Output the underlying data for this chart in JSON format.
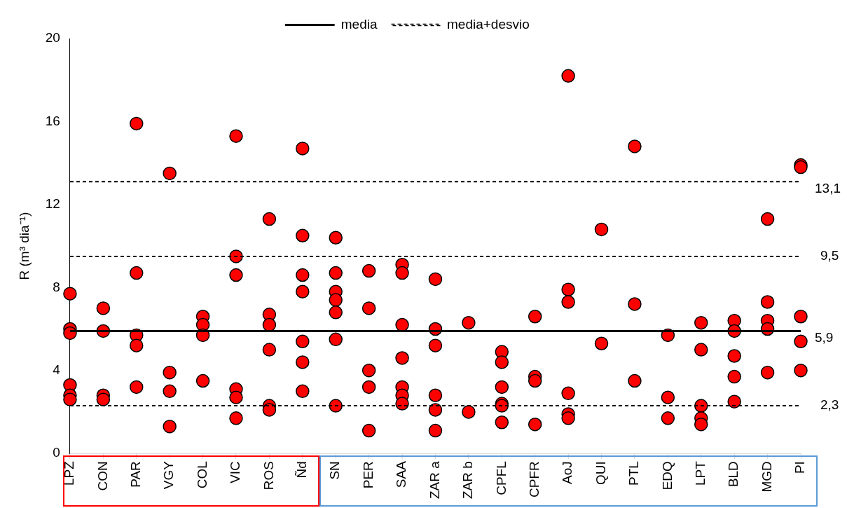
{
  "chart_data": {
    "type": "scatter",
    "ylabel": "R (m³ dia⁻¹)",
    "categories": [
      "LPZ",
      "CON",
      "PAR",
      "VGY",
      "COL",
      "VIC",
      "ROS",
      "Ñd",
      "SN",
      "PER",
      "SAA",
      "ZAR a",
      "ZAR b",
      "CPFL",
      "CPFR",
      "AoJ",
      "QUI",
      "PTL",
      "EDQ",
      "LPT",
      "BLD",
      "MGD",
      "PI"
    ],
    "ylim": [
      0,
      20
    ],
    "yticks": [
      0,
      4,
      8,
      12,
      16,
      20
    ],
    "grid": false,
    "legend": "top",
    "series": [
      {
        "type": "line",
        "name": "media",
        "color": "#000000",
        "line_style": "solid",
        "marker": "none",
        "values": [
          5.9,
          5.9,
          5.9,
          5.9,
          5.9,
          5.9,
          5.9,
          5.9,
          5.9,
          5.9,
          5.9,
          5.9,
          5.9,
          5.9,
          5.9,
          5.9,
          5.9,
          5.9,
          5.9,
          5.9,
          5.9,
          5.9,
          5.9
        ]
      },
      {
        "type": "line",
        "name": "media+desvio",
        "color": "#000000",
        "line_style": "dashed",
        "marker": "none",
        "values": [
          13.1,
          13.1,
          13.1,
          13.1,
          13.1,
          13.1,
          13.1,
          13.1,
          13.1,
          13.1,
          13.1,
          13.1,
          13.1,
          13.1,
          13.1,
          13.1,
          13.1,
          13.1,
          13.1,
          13.1,
          13.1,
          13.1,
          13.1
        ]
      },
      {
        "marker": "circle",
        "color": "#ff0000",
        "x": [
          "LPZ",
          "LPZ",
          "LPZ",
          "LPZ",
          "LPZ",
          "LPZ",
          "CON",
          "CON",
          "CON",
          "CON",
          "PAR",
          "PAR",
          "PAR",
          "PAR",
          "PAR",
          "VGY",
          "VGY",
          "VGY",
          "VGY",
          "COL",
          "COL",
          "COL",
          "COL",
          "VIC",
          "VIC",
          "VIC",
          "VIC",
          "VIC",
          "VIC",
          "ROS",
          "ROS",
          "ROS",
          "ROS",
          "ROS",
          "ROS",
          "Ñd",
          "Ñd",
          "Ñd",
          "Ñd",
          "Ñd",
          "Ñd",
          "Ñd",
          "SN",
          "SN",
          "SN",
          "SN",
          "SN",
          "SN",
          "SN",
          "PER",
          "PER",
          "PER",
          "PER",
          "PER",
          "SAA",
          "SAA",
          "SAA",
          "SAA",
          "SAA",
          "SAA",
          "SAA",
          "ZAR a",
          "ZAR a",
          "ZAR a",
          "ZAR a",
          "ZAR a",
          "ZAR a",
          "ZAR b",
          "ZAR b",
          "CPFL",
          "CPFL",
          "CPFL",
          "CPFL",
          "CPFL",
          "CPFL",
          "CPFR",
          "CPFR",
          "CPFR",
          "CPFR",
          "AoJ",
          "AoJ",
          "AoJ",
          "AoJ",
          "AoJ",
          "AoJ",
          "QUI",
          "QUI",
          "PTL",
          "PTL",
          "PTL",
          "EDQ",
          "EDQ",
          "EDQ",
          "LPT",
          "LPT",
          "LPT",
          "LPT",
          "LPT",
          "BLD",
          "BLD",
          "BLD",
          "BLD",
          "BLD",
          "MGD",
          "MGD",
          "MGD",
          "MGD",
          "MGD",
          "PI",
          "PI",
          "PI",
          "PI",
          "PI"
        ],
        "values": [
          7.7,
          6.0,
          5.8,
          3.3,
          2.8,
          2.6,
          7.0,
          5.9,
          2.8,
          2.6,
          15.9,
          8.7,
          5.7,
          5.2,
          3.2,
          13.5,
          3.9,
          3.0,
          1.3,
          6.6,
          6.2,
          5.7,
          3.5,
          15.3,
          9.5,
          8.6,
          3.1,
          2.7,
          1.7,
          11.3,
          6.7,
          6.2,
          5.0,
          2.3,
          2.1,
          14.7,
          10.5,
          8.6,
          7.8,
          5.4,
          4.4,
          3.0,
          10.4,
          8.7,
          7.8,
          7.4,
          6.8,
          5.5,
          2.3,
          8.8,
          7.0,
          4.0,
          3.2,
          1.1,
          9.1,
          8.7,
          6.2,
          4.6,
          3.2,
          2.8,
          2.4,
          8.4,
          6.0,
          5.2,
          2.8,
          2.1,
          1.1,
          6.3,
          2.0,
          4.9,
          4.4,
          3.2,
          2.4,
          2.3,
          1.5,
          6.6,
          3.7,
          3.5,
          1.4,
          18.2,
          7.9,
          7.3,
          2.9,
          1.9,
          1.7,
          10.8,
          5.3,
          14.8,
          7.2,
          3.5,
          5.7,
          2.7,
          1.7,
          6.3,
          5.0,
          2.3,
          1.7,
          1.4,
          6.4,
          5.9,
          4.7,
          3.7,
          2.5,
          11.3,
          7.3,
          6.4,
          6.0,
          3.9,
          13.9,
          13.8,
          6.6,
          5.4,
          4.0
        ]
      }
    ],
    "ref_lines": [
      {
        "axis": "y",
        "value": 9.5,
        "label": "9,5",
        "line_style": "dashed",
        "color": "#000000"
      },
      {
        "axis": "y",
        "value": 2.3,
        "label": "2,3",
        "line_style": "dashed",
        "color": "#000000"
      }
    ],
    "annotations": [
      {
        "text": "13,1",
        "x": "PI",
        "y": 13.1
      },
      {
        "text": "5,9",
        "x": "PI",
        "y": 5.9
      }
    ]
  }
}
